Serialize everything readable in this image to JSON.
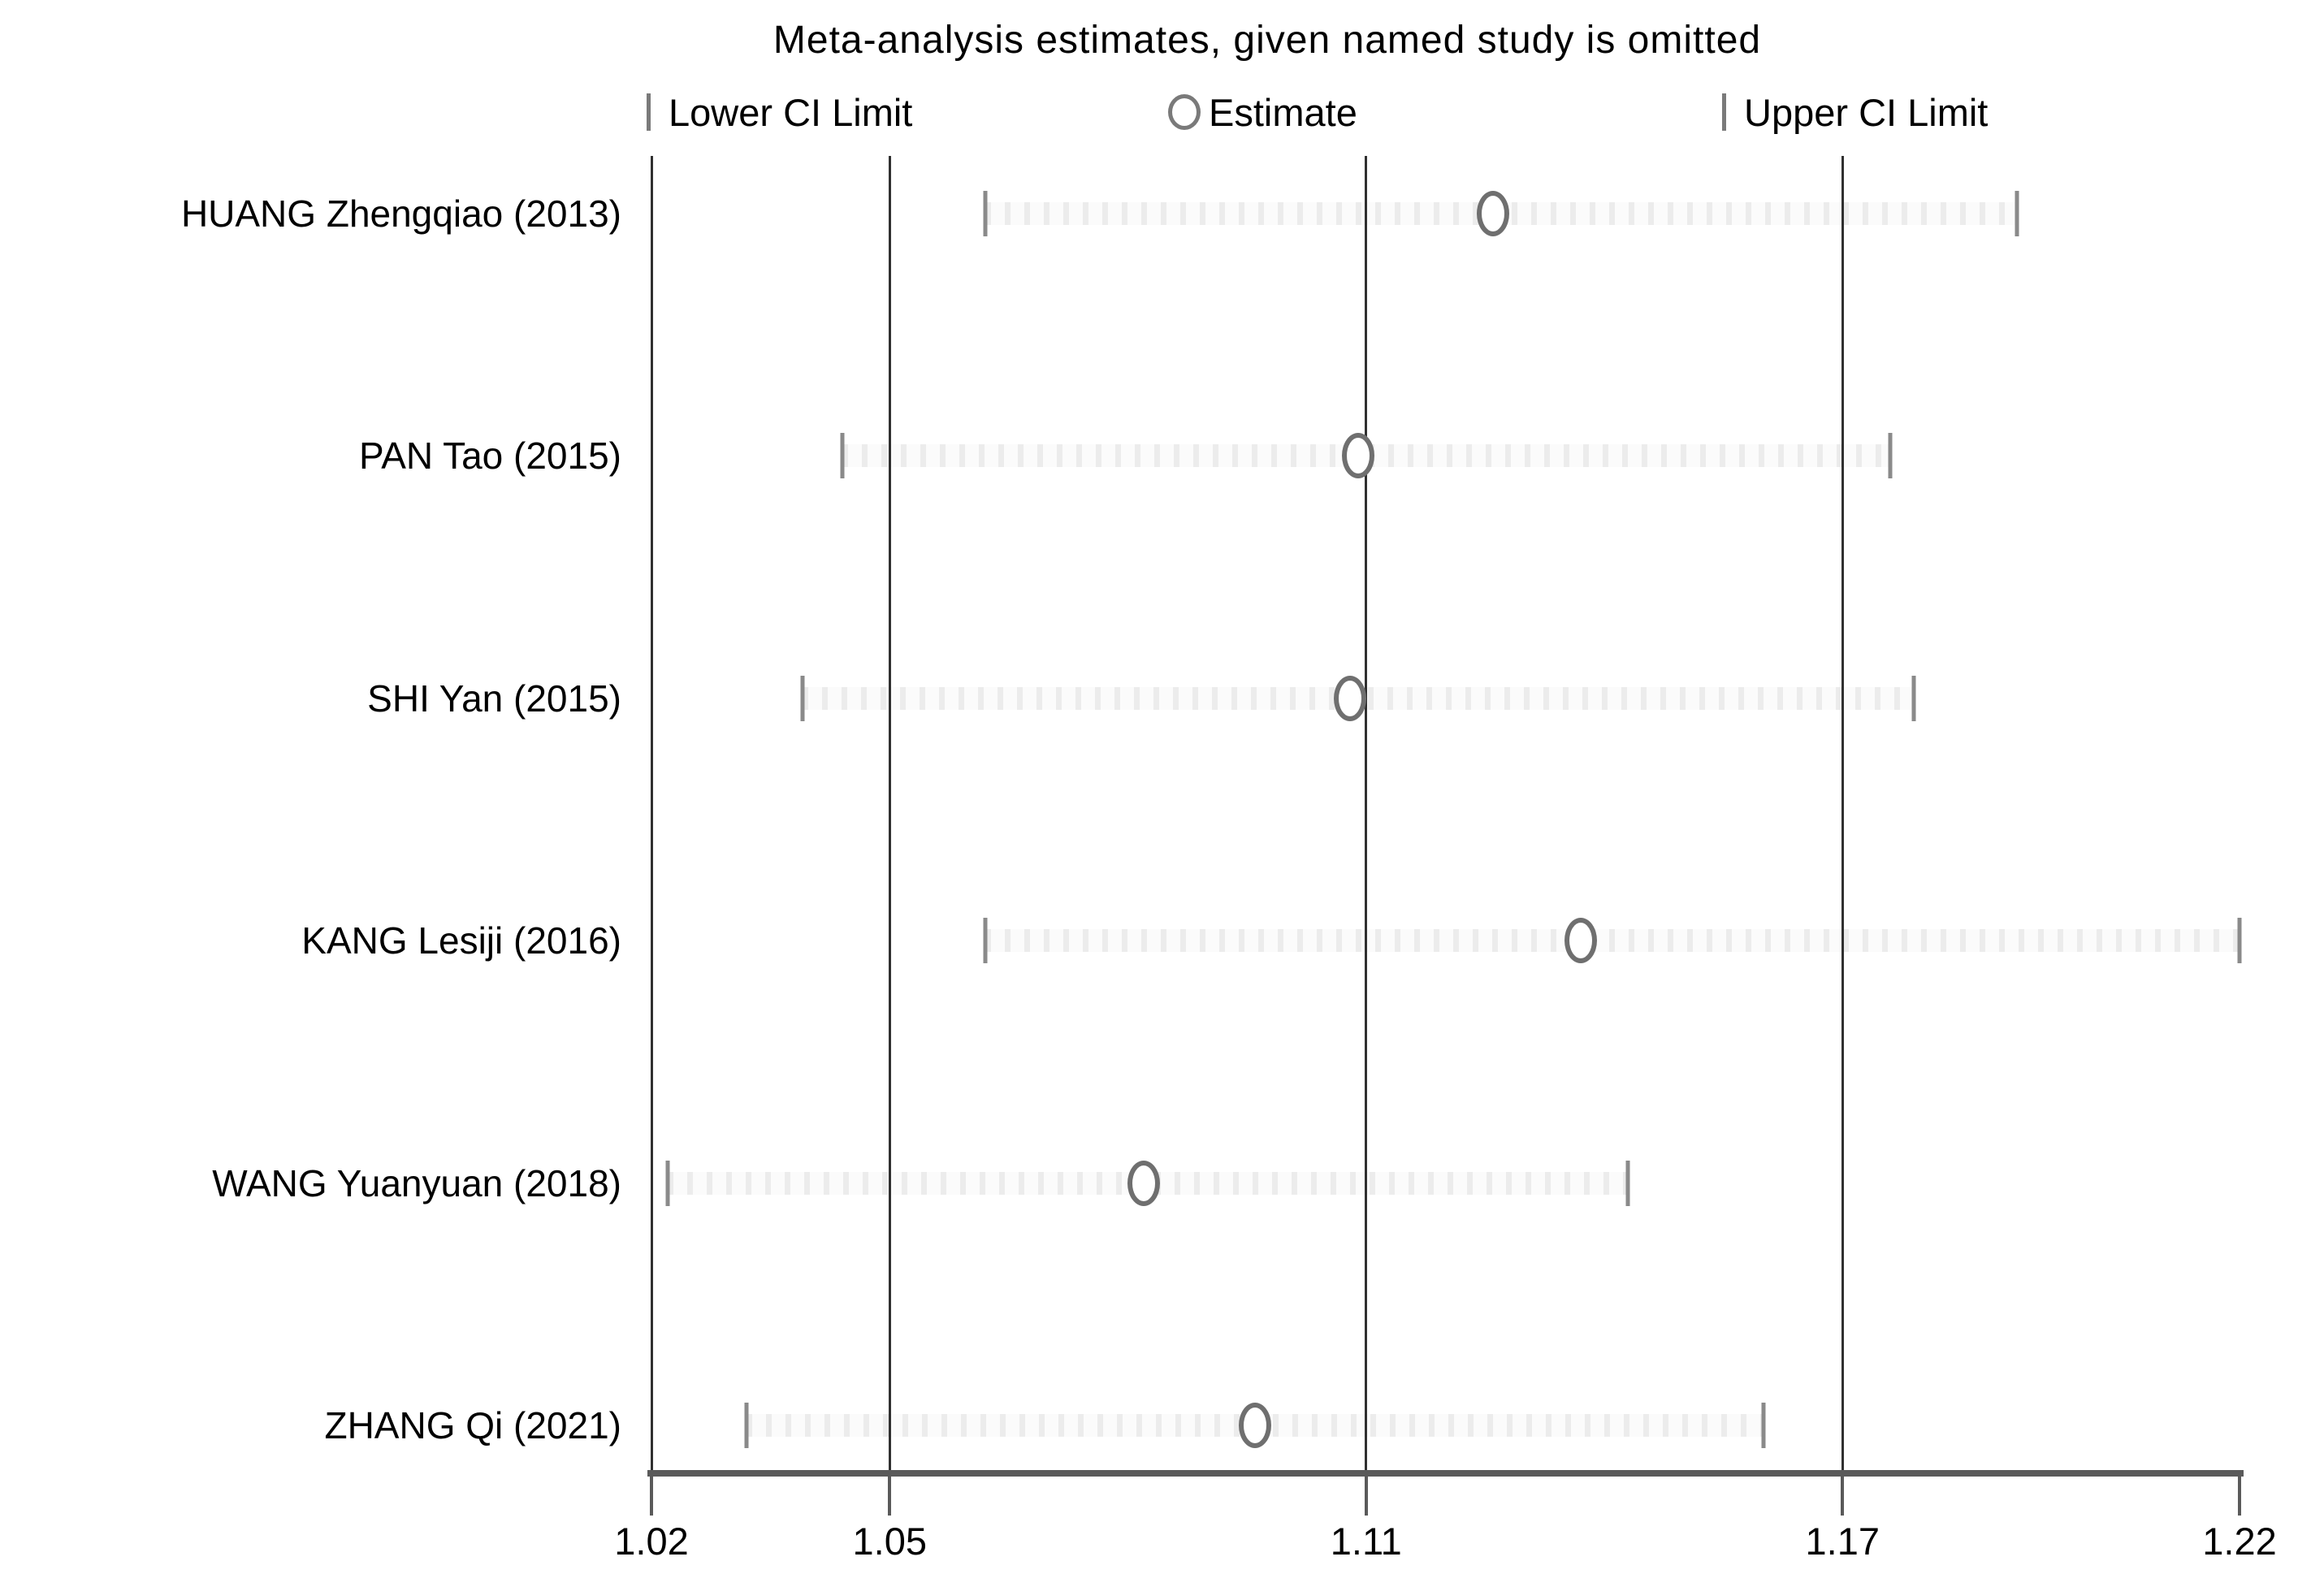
{
  "chart_data": {
    "type": "leave_one_out_forest",
    "title": "Meta-analysis estimates, given named study is omitted",
    "legend": [
      {
        "marker": "lower-ci-bar",
        "label": "Lower CI Limit"
      },
      {
        "marker": "estimate-circle",
        "label": "Estimate"
      },
      {
        "marker": "upper-ci-bar",
        "label": "Upper CI Limit"
      }
    ],
    "x_axis": {
      "min": 1.02,
      "max": 1.22,
      "tick_labels": [
        "1.02",
        "1.05",
        "1.11",
        "1.17",
        "1.22"
      ],
      "tick_values": [
        1.02,
        1.05,
        1.11,
        1.17,
        1.22
      ]
    },
    "reference_lines": {
      "axis_left": 1.02,
      "overall_lower_ci": 1.05,
      "overall_estimate": 1.11,
      "overall_upper_ci": 1.17
    },
    "studies": [
      {
        "label": "HUANG Zhengqiao (2013)",
        "lower": 1.062,
        "estimate": 1.126,
        "upper": 1.192
      },
      {
        "label": "PAN Tao (2015)",
        "lower": 1.044,
        "estimate": 1.109,
        "upper": 1.176
      },
      {
        "label": "SHI Yan (2015)",
        "lower": 1.039,
        "estimate": 1.108,
        "upper": 1.179
      },
      {
        "label": "KANG Lesiji (2016)",
        "lower": 1.062,
        "estimate": 1.137,
        "upper": 1.22
      },
      {
        "label": "WANG Yuanyuan (2018)",
        "lower": 1.022,
        "estimate": 1.082,
        "upper": 1.143
      },
      {
        "label": "ZHANG Qi (2021)",
        "lower": 1.032,
        "estimate": 1.096,
        "upper": 1.16
      }
    ],
    "colors": {
      "reference_line": "#303030",
      "axis_line": "#5a5a5a",
      "cap": "#8a8a8a",
      "marker_stroke": "#6f6f6f",
      "text": "#000000",
      "background": "#ffffff"
    }
  }
}
